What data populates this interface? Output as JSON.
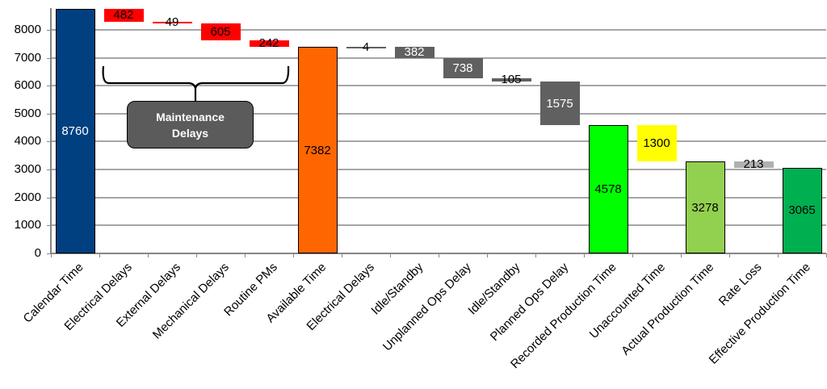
{
  "chart_data": {
    "type": "bar",
    "subtype": "waterfall",
    "title": "",
    "xlabel": "",
    "ylabel": "",
    "ylim": [
      0,
      8760
    ],
    "yticks": [
      0,
      1000,
      2000,
      3000,
      4000,
      5000,
      6000,
      7000,
      8000
    ],
    "grid": true,
    "legend": null,
    "categories": [
      "Calendar Time",
      "Electrical Delays",
      "External Delays",
      "Mechanical Delays",
      "Routine PMs",
      "Available Time",
      "Electrical Delays",
      "Idle/Standby",
      "Unplanned Ops Delay",
      "Idle/Standby",
      "Planned Ops Delay",
      "Recorded Production Time",
      "Unaccounted Time",
      "Actual Production Time",
      "Rate Loss",
      "Effective Production Time"
    ],
    "values": [
      8760,
      482,
      49,
      605,
      242,
      7382,
      4,
      382,
      738,
      105,
      1575,
      4578,
      1300,
      3278,
      213,
      3065
    ],
    "bars": [
      {
        "category": "Calendar Time",
        "kind": "total",
        "value": 8760,
        "base": 0,
        "top": 8760,
        "color": "#004080",
        "label": "8760",
        "label_color": "#ffffff"
      },
      {
        "category": "Electrical Delays",
        "kind": "delta",
        "value": 482,
        "base": 8278,
        "top": 8760,
        "color": "#ff0000",
        "label": "482",
        "label_color": "#000000"
      },
      {
        "category": "External Delays",
        "kind": "delta",
        "value": 49,
        "base": 8229,
        "top": 8278,
        "color": "#ff0000",
        "label": "49",
        "label_color": "#000000"
      },
      {
        "category": "Mechanical Delays",
        "kind": "delta",
        "value": 605,
        "base": 7624,
        "top": 8229,
        "color": "#ff0000",
        "label": "605",
        "label_color": "#000000"
      },
      {
        "category": "Routine PMs",
        "kind": "delta",
        "value": 242,
        "base": 7382,
        "top": 7624,
        "color": "#ff0000",
        "label": "242",
        "label_color": "#000000"
      },
      {
        "category": "Available Time",
        "kind": "total",
        "value": 7382,
        "base": 0,
        "top": 7382,
        "color": "#ff6600",
        "label": "7382",
        "label_color": "#000000"
      },
      {
        "category": "Electrical Delays",
        "kind": "delta",
        "value": 4,
        "base": 7378,
        "top": 7382,
        "color": "#606060",
        "label": "4",
        "label_color": "#000000"
      },
      {
        "category": "Idle/Standby",
        "kind": "delta",
        "value": 382,
        "base": 6996,
        "top": 7378,
        "color": "#606060",
        "label": "382",
        "label_color": "#ffffff"
      },
      {
        "category": "Unplanned Ops Delay",
        "kind": "delta",
        "value": 738,
        "base": 6258,
        "top": 6996,
        "color": "#606060",
        "label": "738",
        "label_color": "#ffffff"
      },
      {
        "category": "Idle/Standby",
        "kind": "delta",
        "value": 105,
        "base": 6153,
        "top": 6258,
        "color": "#606060",
        "label": "105",
        "label_color": "#000000"
      },
      {
        "category": "Planned Ops Delay",
        "kind": "delta",
        "value": 1575,
        "base": 4578,
        "top": 6153,
        "color": "#606060",
        "label": "1575",
        "label_color": "#ffffff"
      },
      {
        "category": "Recorded Production Time",
        "kind": "total",
        "value": 4578,
        "base": 0,
        "top": 4578,
        "color": "#00ff00",
        "label": "4578",
        "label_color": "#000000"
      },
      {
        "category": "Unaccounted Time",
        "kind": "delta",
        "value": 1300,
        "base": 3278,
        "top": 4578,
        "color": "#ffff00",
        "label": "1300",
        "label_color": "#000000"
      },
      {
        "category": "Actual Production Time",
        "kind": "total",
        "value": 3278,
        "base": 0,
        "top": 3278,
        "color": "#92d050",
        "label": "3278",
        "label_color": "#000000"
      },
      {
        "category": "Rate Loss",
        "kind": "delta",
        "value": 213,
        "base": 3065,
        "top": 3278,
        "color": "#b0b0b0",
        "label": "213",
        "label_color": "#000000"
      },
      {
        "category": "Effective Production Time",
        "kind": "total",
        "value": 3065,
        "base": 0,
        "top": 3065,
        "color": "#00b050",
        "label": "3065",
        "label_color": "#000000"
      }
    ],
    "annotations": [
      {
        "type": "brace",
        "spans": [
          "Electrical Delays",
          "External Delays",
          "Mechanical Delays",
          "Routine PMs"
        ],
        "text": "Maintenance Delays",
        "box_color": "#5b5b5b",
        "text_color": "#ffffff"
      }
    ]
  },
  "annotation": {
    "line1": "Maintenance",
    "line2": "Delays"
  }
}
